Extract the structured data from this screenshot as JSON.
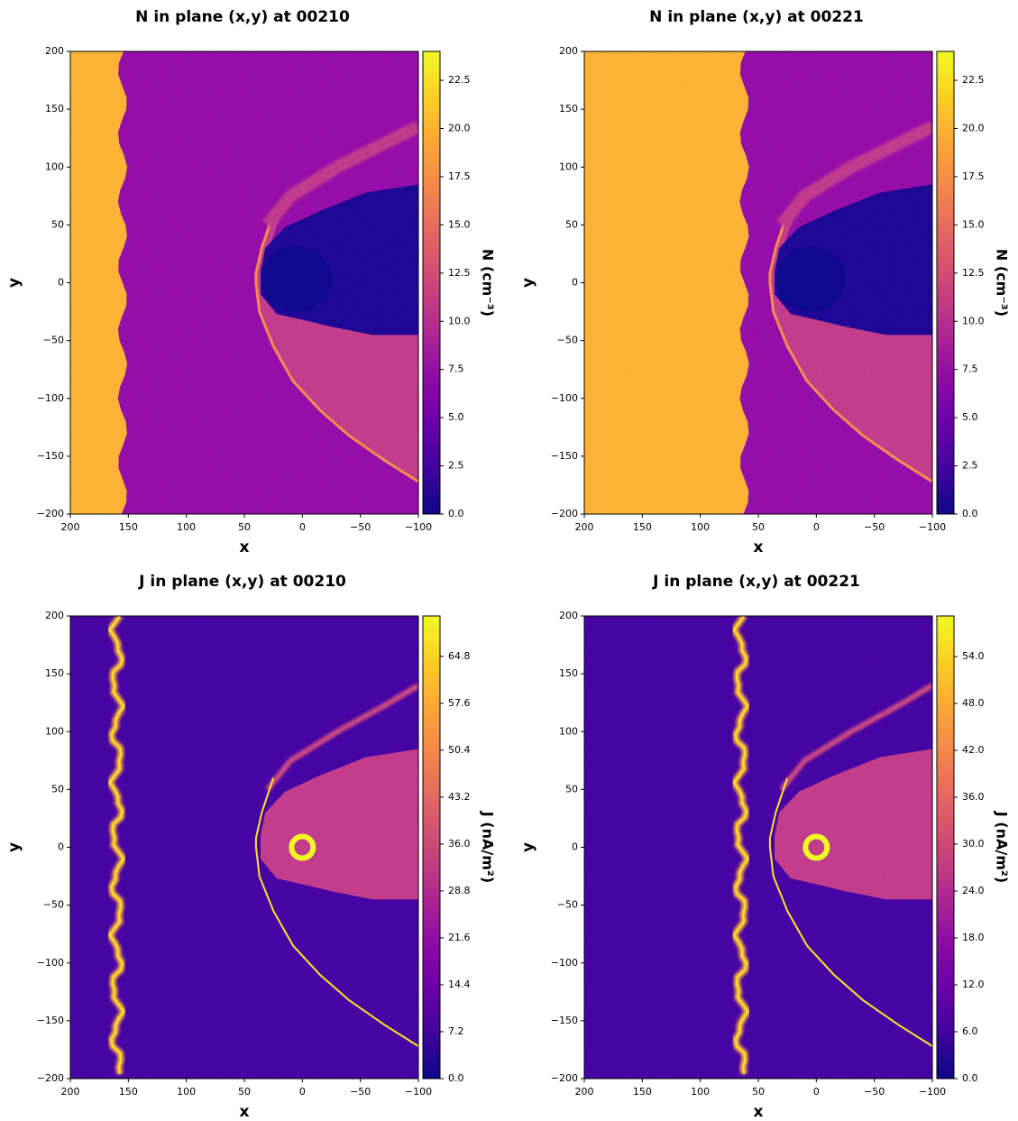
{
  "chart_data": [
    {
      "type": "heatmap",
      "title": "N in plane (x,y) at 00210",
      "xlabel": "x",
      "ylabel": "y",
      "colorbar_label": "N (cm⁻³)",
      "colormap": "plasma",
      "xlim": [
        200,
        -100
      ],
      "ylim": [
        -200,
        200
      ],
      "xticks": [
        200,
        150,
        100,
        50,
        0,
        {
          "value": -50,
          "label": "−50"
        },
        {
          "value": -100,
          "label": "−100"
        }
      ],
      "yticks": [
        {
          "value": -200,
          "label": "−200"
        },
        {
          "value": -150,
          "label": "−150"
        },
        {
          "value": -100,
          "label": "−100"
        },
        {
          "value": -50,
          "label": "−50"
        },
        0,
        50,
        100,
        150,
        200
      ],
      "clim": [
        0,
        24
      ],
      "cticks": [
        {
          "value": 0,
          "label": "0.0"
        },
        2.5,
        {
          "value": 5,
          "label": "5.0"
        },
        7.5,
        {
          "value": 10,
          "label": "10.0"
        },
        12.5,
        {
          "value": 15,
          "label": "15.0"
        },
        17.5,
        {
          "value": 20,
          "label": "20.0"
        },
        22.5
      ]
    },
    {
      "type": "heatmap",
      "title": "N in plane (x,y) at 00221",
      "xlabel": "x",
      "ylabel": "y",
      "colorbar_label": "N (cm⁻³)",
      "colormap": "plasma",
      "xlim": [
        200,
        -100
      ],
      "ylim": [
        -200,
        200
      ],
      "xticks": [
        200,
        150,
        100,
        50,
        0,
        {
          "value": -50,
          "label": "−50"
        },
        {
          "value": -100,
          "label": "−100"
        }
      ],
      "yticks": [
        {
          "value": -200,
          "label": "−200"
        },
        {
          "value": -150,
          "label": "−150"
        },
        {
          "value": -100,
          "label": "−100"
        },
        {
          "value": -50,
          "label": "−50"
        },
        0,
        50,
        100,
        150,
        200
      ],
      "clim": [
        0,
        24
      ],
      "cticks": [
        {
          "value": 0,
          "label": "0.0"
        },
        2.5,
        {
          "value": 5,
          "label": "5.0"
        },
        7.5,
        {
          "value": 10,
          "label": "10.0"
        },
        12.5,
        {
          "value": 15,
          "label": "15.0"
        },
        17.5,
        {
          "value": 20,
          "label": "20.0"
        },
        22.5
      ]
    },
    {
      "type": "heatmap",
      "title": "J in plane (x,y) at 00210",
      "xlabel": "x",
      "ylabel": "y",
      "colorbar_label": "J (nA/m²)",
      "colormap": "plasma",
      "xlim": [
        200,
        -100
      ],
      "ylim": [
        -200,
        200
      ],
      "xticks": [
        200,
        150,
        100,
        50,
        0,
        {
          "value": -50,
          "label": "−50"
        },
        {
          "value": -100,
          "label": "−100"
        }
      ],
      "yticks": [
        {
          "value": -200,
          "label": "−200"
        },
        {
          "value": -150,
          "label": "−150"
        },
        {
          "value": -100,
          "label": "−100"
        },
        {
          "value": -50,
          "label": "−50"
        },
        0,
        50,
        100,
        150,
        200
      ],
      "clim": [
        0,
        71
      ],
      "cticks": [
        {
          "value": 0,
          "label": "0.0"
        },
        7.2,
        14.4,
        21.6,
        28.8,
        {
          "value": 36,
          "label": "36.0"
        },
        43.2,
        50.4,
        57.6,
        64.8
      ]
    },
    {
      "type": "heatmap",
      "title": "J in plane (x,y) at 00221",
      "xlabel": "x",
      "ylabel": "y",
      "colorbar_label": "J (nA/m²)",
      "colormap": "plasma",
      "xlim": [
        200,
        -100
      ],
      "ylim": [
        -200,
        200
      ],
      "xticks": [
        200,
        150,
        100,
        50,
        0,
        {
          "value": -50,
          "label": "−50"
        },
        {
          "value": -100,
          "label": "−100"
        }
      ],
      "yticks": [
        {
          "value": -200,
          "label": "−200"
        },
        {
          "value": -150,
          "label": "−150"
        },
        {
          "value": -100,
          "label": "−100"
        },
        {
          "value": -50,
          "label": "−50"
        },
        0,
        50,
        100,
        150,
        200
      ],
      "clim": [
        0,
        59.2
      ],
      "cticks": [
        {
          "value": 0,
          "label": "0.0"
        },
        {
          "value": 6,
          "label": "6.0"
        },
        {
          "value": 12,
          "label": "12.0"
        },
        {
          "value": 18,
          "label": "18.0"
        },
        {
          "value": 24,
          "label": "24.0"
        },
        {
          "value": 30,
          "label": "30.0"
        },
        {
          "value": 36,
          "label": "36.0"
        },
        {
          "value": 42,
          "label": "42.0"
        },
        {
          "value": 48,
          "label": "48.0"
        },
        {
          "value": 54,
          "label": "54.0"
        }
      ]
    }
  ]
}
